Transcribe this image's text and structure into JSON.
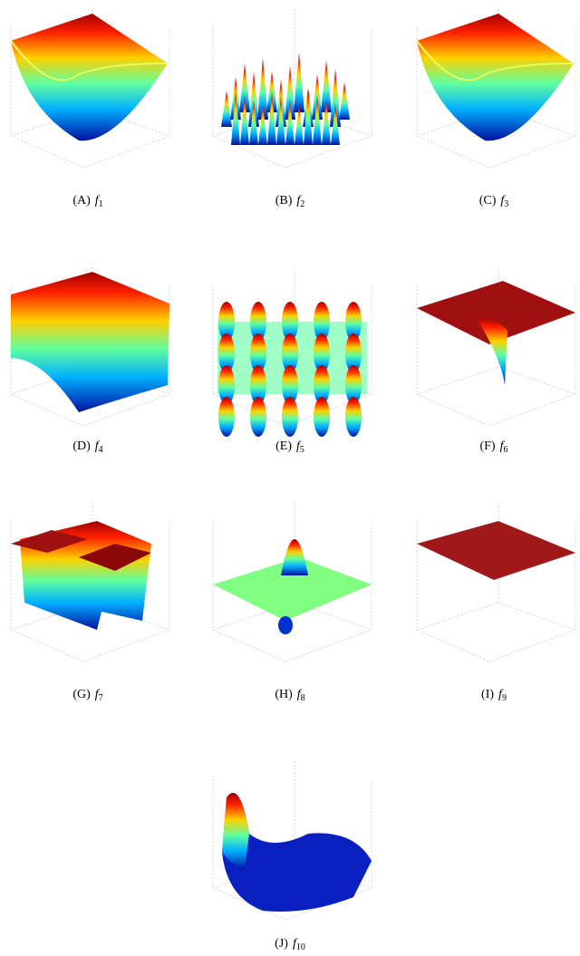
{
  "figure": {
    "panels": [
      {
        "label": "(A)",
        "func": "f",
        "sub": "1"
      },
      {
        "label": "(B)",
        "func": "f",
        "sub": "2"
      },
      {
        "label": "(C)",
        "func": "f",
        "sub": "3"
      },
      {
        "label": "(D)",
        "func": "f",
        "sub": "4"
      },
      {
        "label": "(E)",
        "func": "f",
        "sub": "5"
      },
      {
        "label": "(F)",
        "func": "f",
        "sub": "6"
      },
      {
        "label": "(G)",
        "func": "f",
        "sub": "7"
      },
      {
        "label": "(H)",
        "func": "f",
        "sub": "8"
      },
      {
        "label": "(I)",
        "func": "f",
        "sub": "9"
      },
      {
        "label": "(J)",
        "func": "f",
        "sub": "10"
      }
    ]
  }
}
